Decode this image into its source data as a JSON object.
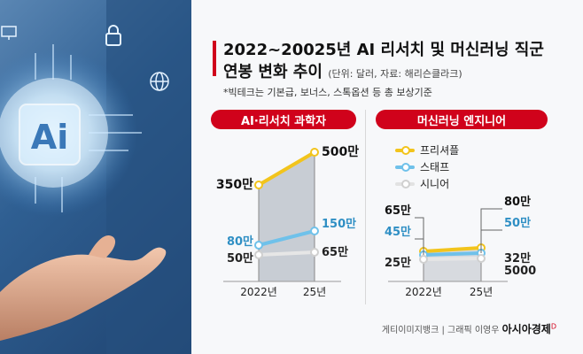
{
  "title": {
    "line1": "2022~20025년 AI 리서치 및 머신러닝 직군",
    "line2": "연봉 변화 추이",
    "note": "(단위: 달러, 자료: 해리슨클라크)",
    "footnote": "*빅테크는 기본급, 보너스, 스톡옵션 등 총 보상기준"
  },
  "photo": {
    "ai_label": "Ai"
  },
  "colors": {
    "accent": "#d0021b",
    "freelancer": "#f2c41c",
    "staff": "#6fc1ea",
    "senior": "#e9e9e9"
  },
  "credit": {
    "source": "게티이미지뱅크",
    "separator": "|",
    "graphic": "그래픽 이영우",
    "brand": "아시아경제",
    "brand_mark": "D"
  },
  "chart_data": [
    {
      "type": "line",
      "title": "AI·리서치 과학자",
      "x": [
        "2022년",
        "25년"
      ],
      "series": [
        {
          "key": "freelancer",
          "values": [
            3500000,
            5000000
          ],
          "labels": [
            "350만",
            "500만"
          ]
        },
        {
          "key": "staff",
          "values": [
            800000,
            1500000
          ],
          "labels": [
            "80만",
            "150만"
          ]
        },
        {
          "key": "senior",
          "values": [
            500000,
            650000
          ],
          "labels": [
            "50만",
            "65만"
          ]
        }
      ]
    },
    {
      "type": "line",
      "title": "머신러닝 엔지니어",
      "x": [
        "2022년",
        "25년"
      ],
      "legend": [
        "프리셔플",
        "스태프",
        "시니어"
      ],
      "series": [
        {
          "key": "freelancer",
          "name": "프리셔플",
          "values": [
            650000,
            800000
          ],
          "labels": [
            "65만",
            "80만"
          ]
        },
        {
          "key": "staff",
          "name": "스태프",
          "values": [
            450000,
            500000
          ],
          "labels": [
            "45만",
            "50만"
          ]
        },
        {
          "key": "senior",
          "name": "시니어",
          "values": [
            250000,
            325000
          ],
          "labels": [
            "25만",
            "32만\n5000"
          ]
        }
      ]
    }
  ]
}
